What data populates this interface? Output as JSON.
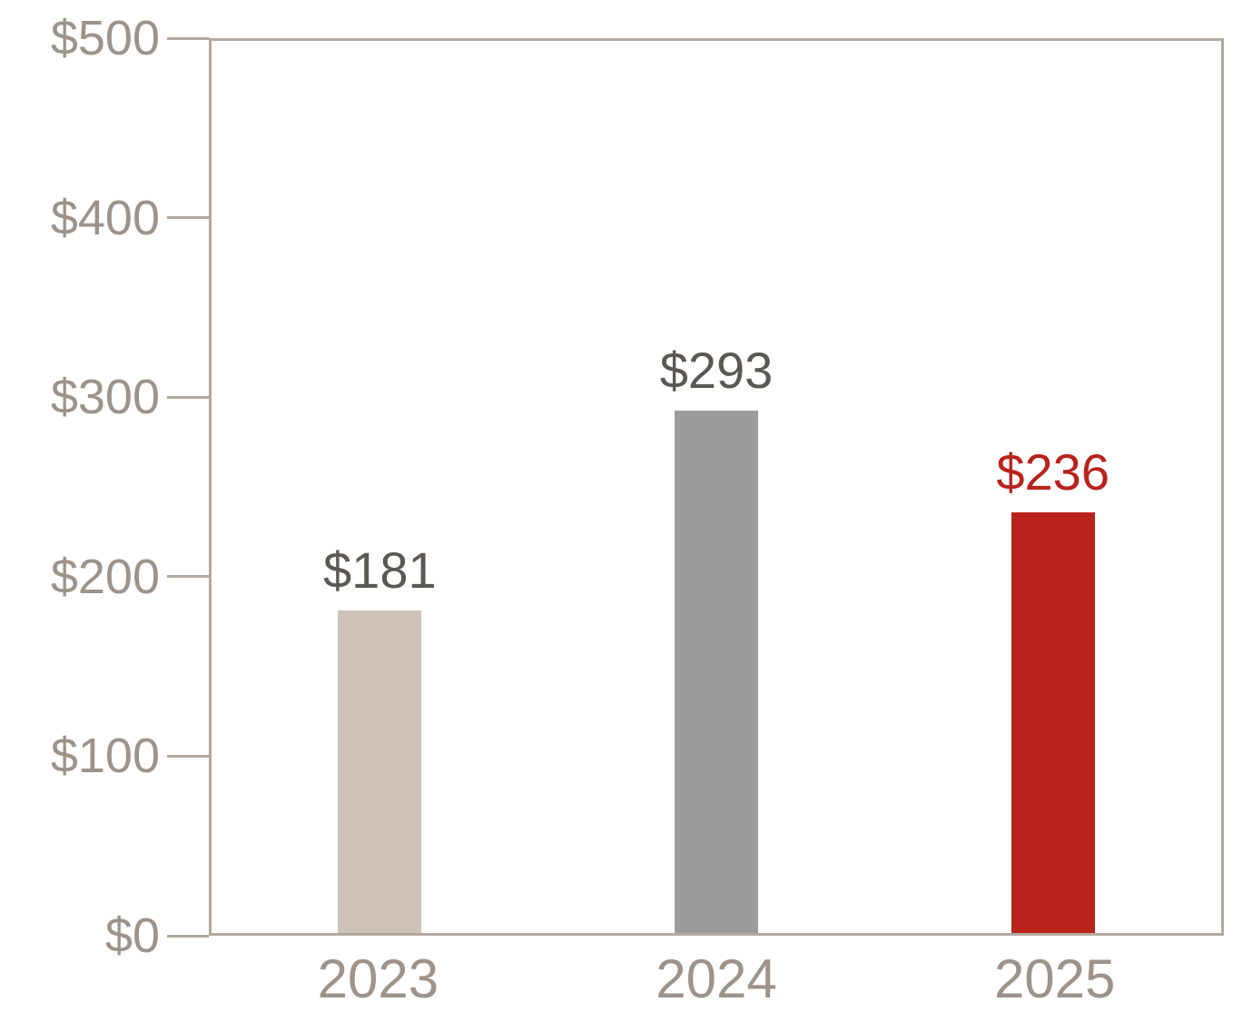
{
  "chart_data": {
    "type": "bar",
    "categories": [
      "2023",
      "2024",
      "2025"
    ],
    "values": [
      181,
      293,
      236
    ],
    "value_labels": [
      "$181",
      "$293",
      "$236"
    ],
    "bar_colors": [
      "#cdc3ba",
      "#9c9c9c",
      "#b8231c"
    ],
    "value_label_colors": [
      "#5b5854",
      "#5b5854",
      "#b8231c"
    ],
    "ylim": [
      0,
      500
    ],
    "yticks": [
      {
        "value": 0,
        "label": "$0"
      },
      {
        "value": 100,
        "label": "$100"
      },
      {
        "value": 200,
        "label": "$200"
      },
      {
        "value": 300,
        "label": "$300"
      },
      {
        "value": 400,
        "label": "$400"
      },
      {
        "value": 500,
        "label": "$500"
      }
    ],
    "grid": false,
    "legend": false,
    "axis_text_color": "#9d938a",
    "frame_color": "#b3a99f"
  }
}
